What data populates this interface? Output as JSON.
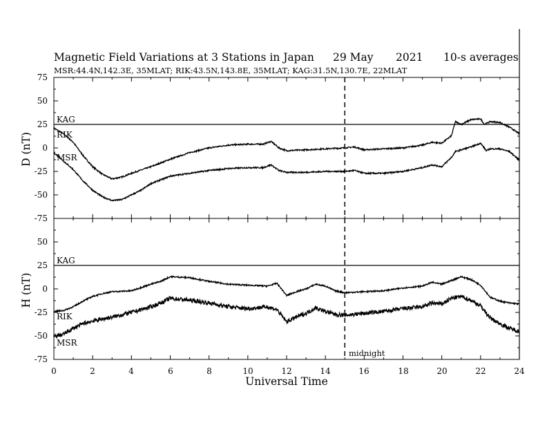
{
  "header": {
    "title": "Magnetic Field Variations at 3 Stations in Japan",
    "date": "29 May",
    "year": "2021",
    "averaging": "10-s averages",
    "stations": "MSR:44.4N,142.3E, 35MLAT;  RIK:43.5N,143.8E, 35MLAT;  KAG:31.5N,130.7E, 22MLAT"
  },
  "chart_data": [
    {
      "type": "line",
      "ylabel": "D (nT)",
      "ylim": [
        -75,
        75
      ],
      "yticks": [
        "75",
        "50",
        "25",
        "0",
        "-25",
        "-50",
        "-75"
      ],
      "xlim": [
        0,
        24
      ],
      "series": [
        {
          "name": "KAG",
          "points": [
            [
              0,
              25
            ],
            [
              24,
              25
            ]
          ]
        },
        {
          "name": "RIK",
          "points": [
            [
              0,
              21
            ],
            [
              0.5,
              15
            ],
            [
              1,
              6
            ],
            [
              1.5,
              -8
            ],
            [
              2,
              -20
            ],
            [
              2.5,
              -28
            ],
            [
              3,
              -33
            ],
            [
              3.5,
              -31
            ],
            [
              4,
              -27
            ],
            [
              5,
              -20
            ],
            [
              6,
              -12
            ],
            [
              7,
              -5
            ],
            [
              8,
              0
            ],
            [
              9,
              3
            ],
            [
              10,
              4
            ],
            [
              10.8,
              4
            ],
            [
              11.2,
              7
            ],
            [
              11.6,
              0
            ],
            [
              12,
              -3
            ],
            [
              13,
              -2
            ],
            [
              14,
              -1
            ],
            [
              15,
              0
            ],
            [
              15.5,
              1
            ],
            [
              16,
              -2
            ],
            [
              17,
              -1
            ],
            [
              18,
              0
            ],
            [
              19,
              3
            ],
            [
              19.5,
              6
            ],
            [
              20,
              5
            ],
            [
              20.5,
              13
            ],
            [
              20.7,
              28
            ],
            [
              21,
              25
            ],
            [
              21.5,
              30
            ],
            [
              22,
              31
            ],
            [
              22.2,
              25
            ],
            [
              22.5,
              28
            ],
            [
              23,
              27
            ],
            [
              23.5,
              22
            ],
            [
              24,
              15
            ]
          ]
        },
        {
          "name": "MSR",
          "points": [
            [
              0,
              -5
            ],
            [
              0.5,
              -14
            ],
            [
              1,
              -23
            ],
            [
              1.5,
              -35
            ],
            [
              2,
              -45
            ],
            [
              2.5,
              -52
            ],
            [
              3,
              -56
            ],
            [
              3.5,
              -55
            ],
            [
              4,
              -50
            ],
            [
              4.5,
              -45
            ],
            [
              5,
              -38
            ],
            [
              6,
              -30
            ],
            [
              7,
              -27
            ],
            [
              8,
              -24
            ],
            [
              9,
              -22
            ],
            [
              10,
              -21
            ],
            [
              10.8,
              -21
            ],
            [
              11.2,
              -18
            ],
            [
              11.6,
              -24
            ],
            [
              12,
              -26
            ],
            [
              13,
              -26
            ],
            [
              14,
              -25
            ],
            [
              15,
              -25
            ],
            [
              15.5,
              -24
            ],
            [
              16,
              -27
            ],
            [
              17,
              -27
            ],
            [
              18,
              -25
            ],
            [
              19,
              -21
            ],
            [
              19.5,
              -18
            ],
            [
              20,
              -20
            ],
            [
              20.5,
              -10
            ],
            [
              20.7,
              -4
            ],
            [
              21,
              -2
            ],
            [
              21.5,
              1
            ],
            [
              22,
              5
            ],
            [
              22.3,
              -3
            ],
            [
              22.5,
              -1
            ],
            [
              23,
              -1
            ],
            [
              23.5,
              -4
            ],
            [
              24,
              -13
            ]
          ]
        }
      ]
    },
    {
      "type": "line",
      "ylabel": "H (nT)",
      "ylim": [
        -75,
        75
      ],
      "yticks": [
        "50",
        "25",
        "0",
        "-25",
        "-50",
        "-75"
      ],
      "xlim": [
        0,
        24
      ],
      "xticks": [
        "0",
        "2",
        "4",
        "6",
        "8",
        "10",
        "12",
        "14",
        "16",
        "18",
        "20",
        "22",
        "24"
      ],
      "xlabel": "Universal Time",
      "annotation": "midnight",
      "midnight_ut": 15,
      "series": [
        {
          "name": "KAG",
          "points": [
            [
              0,
              25
            ],
            [
              24,
              25
            ]
          ]
        },
        {
          "name": "RIK",
          "points": [
            [
              0,
              -24
            ],
            [
              0.5,
              -23
            ],
            [
              1,
              -19
            ],
            [
              1.5,
              -13
            ],
            [
              2,
              -8
            ],
            [
              2.5,
              -5
            ],
            [
              3,
              -3
            ],
            [
              4,
              -2
            ],
            [
              5,
              5
            ],
            [
              5.5,
              8
            ],
            [
              6,
              13
            ],
            [
              7,
              12
            ],
            [
              8,
              8
            ],
            [
              9,
              5
            ],
            [
              10,
              4
            ],
            [
              11,
              3
            ],
            [
              11.5,
              6
            ],
            [
              12,
              -7
            ],
            [
              12.5,
              -3
            ],
            [
              13,
              0
            ],
            [
              13.5,
              5
            ],
            [
              14,
              3
            ],
            [
              14.5,
              -2
            ],
            [
              15,
              -4
            ],
            [
              16,
              -3
            ],
            [
              17,
              -2
            ],
            [
              18,
              1
            ],
            [
              19,
              3
            ],
            [
              19.5,
              7
            ],
            [
              20,
              5
            ],
            [
              20.5,
              9
            ],
            [
              21,
              13
            ],
            [
              21.5,
              10
            ],
            [
              22,
              4
            ],
            [
              22.5,
              -9
            ],
            [
              23,
              -13
            ],
            [
              23.5,
              -15
            ],
            [
              24,
              -16
            ]
          ]
        },
        {
          "name": "MSR",
          "points": [
            [
              0,
              -51
            ],
            [
              0.5,
              -48
            ],
            [
              1,
              -42
            ],
            [
              1.5,
              -37
            ],
            [
              2,
              -34
            ],
            [
              2.5,
              -32
            ],
            [
              3,
              -30
            ],
            [
              4,
              -25
            ],
            [
              5,
              -19
            ],
            [
              5.5,
              -15
            ],
            [
              6,
              -10
            ],
            [
              7,
              -12
            ],
            [
              8,
              -15
            ],
            [
              9,
              -19
            ],
            [
              10,
              -21
            ],
            [
              11,
              -19
            ],
            [
              11.5,
              -22
            ],
            [
              12,
              -35
            ],
            [
              12.5,
              -30
            ],
            [
              13,
              -26
            ],
            [
              13.5,
              -20
            ],
            [
              14,
              -24
            ],
            [
              14.5,
              -27
            ],
            [
              15,
              -28
            ],
            [
              16,
              -26
            ],
            [
              17,
              -24
            ],
            [
              18,
              -21
            ],
            [
              19,
              -19
            ],
            [
              19.5,
              -15
            ],
            [
              20,
              -16
            ],
            [
              20.5,
              -10
            ],
            [
              21,
              -8
            ],
            [
              21.5,
              -12
            ],
            [
              22,
              -18
            ],
            [
              22.5,
              -31
            ],
            [
              23,
              -37
            ],
            [
              23.5,
              -42
            ],
            [
              24,
              -45
            ]
          ]
        }
      ]
    }
  ]
}
